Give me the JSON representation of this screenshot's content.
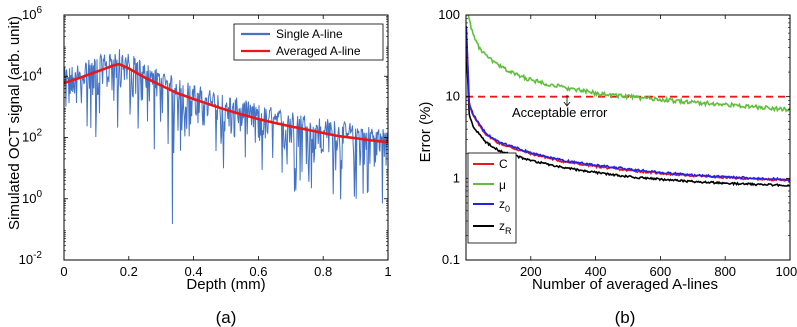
{
  "chart_data": [
    {
      "type": "line",
      "panel_label": "(a)",
      "xlabel": "Depth (mm)",
      "ylabel": "Simulated OCT signal (arb. unit)",
      "xlim": [
        0,
        1
      ],
      "ylim": [
        0.01,
        1000000
      ],
      "yscale": "log",
      "xticks": [
        "0",
        "0.2",
        "0.4",
        "0.6",
        "0.8",
        "1"
      ],
      "xtick_values": [
        0,
        0.2,
        0.4,
        0.6,
        0.8,
        1
      ],
      "yticks": [
        "10-2",
        "100",
        "102",
        "104",
        "106"
      ],
      "ytick_exponents": [
        -2,
        0,
        2,
        4,
        6
      ],
      "legend_position": "top-right",
      "series": [
        {
          "name": "Single A-line",
          "color": "#4472c4",
          "x": [
            0,
            0.05,
            0.1,
            0.15,
            0.17,
            0.2,
            0.25,
            0.3,
            0.35,
            0.4,
            0.45,
            0.5,
            0.55,
            0.6,
            0.65,
            0.7,
            0.75,
            0.8,
            0.85,
            0.9,
            0.95,
            1
          ],
          "y": [
            6000,
            9000,
            14000,
            22000,
            25000,
            18000,
            9000,
            5000,
            2800,
            1800,
            1200,
            800,
            560,
            400,
            300,
            230,
            180,
            140,
            110,
            95,
            80,
            70
          ]
        },
        {
          "name": "Averaged A-line",
          "color": "#e8171c",
          "x": [
            0,
            0.05,
            0.1,
            0.15,
            0.17,
            0.2,
            0.25,
            0.3,
            0.35,
            0.4,
            0.45,
            0.5,
            0.55,
            0.6,
            0.65,
            0.7,
            0.75,
            0.8,
            0.85,
            0.9,
            0.95,
            1
          ],
          "y": [
            6000,
            9000,
            14000,
            22000,
            25000,
            18000,
            9000,
            5000,
            2800,
            1800,
            1200,
            800,
            560,
            400,
            300,
            230,
            180,
            140,
            110,
            95,
            80,
            70
          ]
        }
      ]
    },
    {
      "type": "line",
      "panel_label": "(b)",
      "xlabel": "Number of averaged A-lines",
      "ylabel": "Error (%)",
      "xlim": [
        0,
        1000
      ],
      "ylim": [
        0.1,
        100
      ],
      "yscale": "log",
      "xticks": [
        "200",
        "400",
        "600",
        "800",
        "1000"
      ],
      "xtick_values": [
        200,
        400,
        600,
        800,
        1000
      ],
      "yticks": [
        "0.1",
        "1",
        "10",
        "100"
      ],
      "ytick_values": [
        0.1,
        1,
        10,
        100
      ],
      "legend_position": "bottom-left",
      "reference_line": {
        "y": 10,
        "color": "#e8171c",
        "style": "dashed"
      },
      "annotation": "Acceptable error",
      "series": [
        {
          "name": "C",
          "color": "#e8171c",
          "x": [
            1,
            10,
            20,
            40,
            60,
            100,
            150,
            200,
            300,
            400,
            500,
            600,
            700,
            800,
            900,
            1000
          ],
          "y": [
            70,
            8,
            6,
            4.5,
            3.5,
            2.7,
            2.3,
            2,
            1.6,
            1.4,
            1.25,
            1.15,
            1.08,
            1.02,
            0.98,
            0.95
          ]
        },
        {
          "name": "μ",
          "color": "#5fbf3a",
          "x": [
            1,
            10,
            20,
            40,
            60,
            100,
            150,
            200,
            300,
            400,
            500,
            600,
            700,
            800,
            900,
            1000
          ],
          "y": [
            110,
            90,
            60,
            40,
            32,
            24,
            19,
            16,
            13,
            11,
            10,
            9.2,
            8.5,
            8,
            7.4,
            7
          ]
        },
        {
          "name": "z0",
          "color": "#2121e8",
          "x": [
            1,
            10,
            20,
            40,
            60,
            100,
            150,
            200,
            300,
            400,
            500,
            600,
            700,
            800,
            900,
            1000
          ],
          "y": [
            75,
            8.5,
            6.3,
            4.7,
            3.6,
            2.8,
            2.4,
            2.05,
            1.65,
            1.45,
            1.3,
            1.18,
            1.1,
            1.04,
            1,
            0.97
          ]
        },
        {
          "name": "zR",
          "color": "#000000",
          "x": [
            1,
            10,
            20,
            40,
            60,
            100,
            150,
            200,
            300,
            400,
            500,
            600,
            700,
            800,
            900,
            1000
          ],
          "y": [
            40,
            6,
            4.5,
            3.5,
            2.8,
            2.2,
            1.9,
            1.65,
            1.35,
            1.18,
            1.05,
            0.97,
            0.91,
            0.87,
            0.84,
            0.82
          ]
        }
      ]
    }
  ]
}
